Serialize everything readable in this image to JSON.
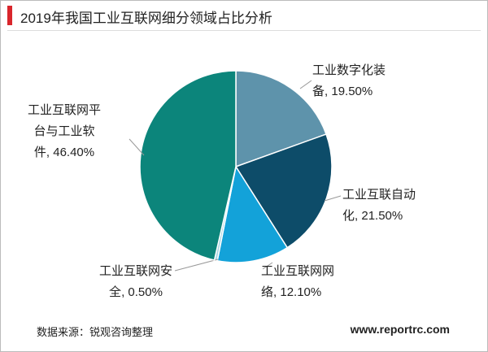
{
  "chart_data": {
    "type": "pie",
    "title": "2019年我国工业互联网细分领域占比分析",
    "categories": [
      "工业数字化装备",
      "工业互联自动化",
      "工业互联网网络",
      "工业互联网安全",
      "工业互联网平台与工业软件"
    ],
    "values": [
      19.5,
      21.5,
      12.1,
      0.5,
      46.4
    ],
    "value_labels": [
      "19.50%",
      "21.50%",
      "12.10%",
      "0.50%",
      "46.40%"
    ],
    "label_separator": ", ",
    "colors": [
      "#5e93ab",
      "#0d4c69",
      "#13a2d9",
      "#a7d6e3",
      "#0c857b"
    ],
    "source": "数据来源：锐观咨询整理",
    "website": "www.reportrc.com"
  }
}
